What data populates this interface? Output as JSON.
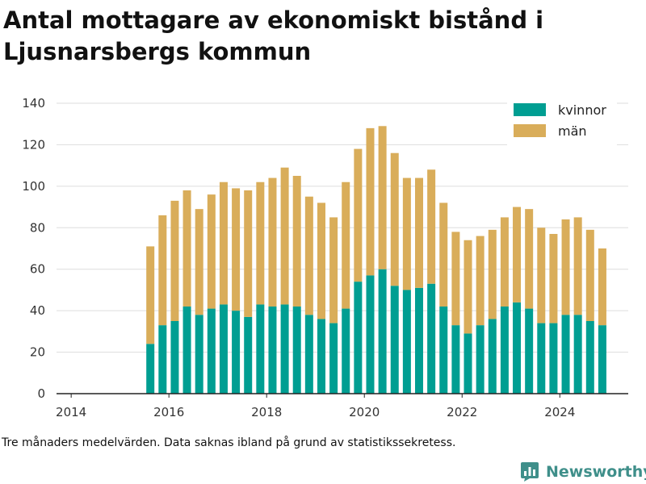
{
  "chart_data": {
    "type": "bar",
    "stacked": true,
    "title": "Antal mottagare av ekonomiskt bistånd i Ljusnarsbergs kommun",
    "note": "Tre månaders medelvärden. Data saknas ibland på grund av statistikssekretess.",
    "x_axis": {
      "min": 2013.7,
      "max": 2025.4,
      "ticks": [
        2014,
        2016,
        2018,
        2020,
        2022,
        2024
      ],
      "tick_labels": [
        "2014",
        "2016",
        "2018",
        "2020",
        "2022",
        "2024"
      ]
    },
    "y_axis": {
      "min": 0,
      "max": 140,
      "ticks": [
        0,
        20,
        40,
        60,
        80,
        100,
        120,
        140
      ],
      "tick_labels": [
        "0",
        "20",
        "40",
        "60",
        "80",
        "100",
        "120",
        "140"
      ]
    },
    "grid": "horizontal",
    "legend_position": "top-right",
    "x": [
      2015.62,
      2015.87,
      2016.12,
      2016.37,
      2016.62,
      2016.87,
      2017.12,
      2017.37,
      2017.62,
      2017.87,
      2018.12,
      2018.37,
      2018.62,
      2018.87,
      2019.12,
      2019.37,
      2019.62,
      2019.87,
      2020.12,
      2020.37,
      2020.62,
      2020.87,
      2021.12,
      2021.37,
      2021.62,
      2021.87,
      2022.12,
      2022.37,
      2022.62,
      2022.87,
      2023.12,
      2023.37,
      2023.62,
      2023.87,
      2024.12,
      2024.37,
      2024.62,
      2024.87
    ],
    "series": [
      {
        "name": "kvinnor",
        "color": "#009e92",
        "values": [
          24,
          33,
          35,
          42,
          38,
          41,
          43,
          40,
          37,
          43,
          42,
          43,
          42,
          38,
          36,
          34,
          41,
          54,
          57,
          60,
          52,
          50,
          51,
          53,
          42,
          33,
          29,
          33,
          36,
          42,
          44,
          41,
          34,
          34,
          38,
          38,
          35,
          33
        ]
      },
      {
        "name": "män",
        "color": "#d9ad5a",
        "values": [
          47,
          53,
          58,
          56,
          51,
          55,
          59,
          59,
          61,
          59,
          62,
          66,
          63,
          57,
          56,
          51,
          61,
          64,
          71,
          69,
          64,
          54,
          53,
          55,
          50,
          45,
          45,
          43,
          43,
          43,
          46,
          48,
          46,
          43,
          46,
          47,
          44,
          37
        ]
      }
    ]
  },
  "brand": {
    "name": "Newsworthy"
  }
}
